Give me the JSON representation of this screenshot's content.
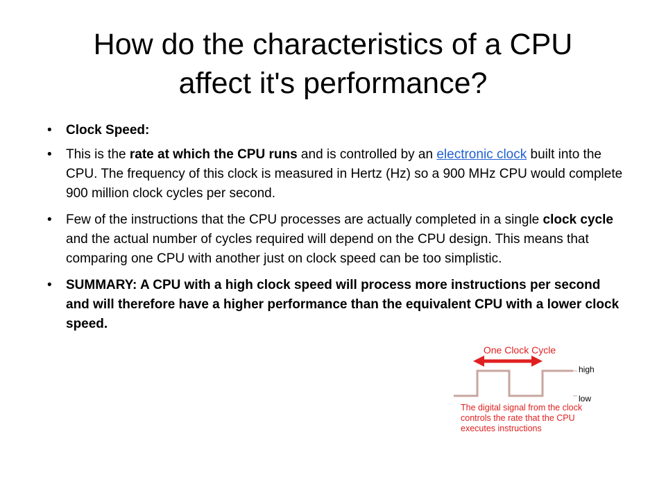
{
  "slide": {
    "title_line1": "How do the characteristics of a CPU",
    "title_line2": "affect it's performance?",
    "bullets": {
      "b1": "Clock Speed:",
      "b2_a": "This is the ",
      "b2_bold": "rate at which the CPU runs",
      "b2_b": " and is controlled by an ",
      "b2_link": "electronic clock",
      "b2_c": " built into the CPU. The frequency of this clock is measured in Hertz (Hz) so a 900 MHz CPU would complete 900 million clock cycles per second.",
      "b3_a": "Few of the instructions that the CPU processes are actually completed in a single ",
      "b3_bold": "clock cycle",
      "b3_b": " and the actual number of cycles required will depend on the CPU design. This means that comparing one CPU with another just on clock speed can be too simplistic.",
      "b4": "SUMMARY: A CPU with a high clock speed will process more instructions per second and will therefore have a higher performance than the equivalent CPU with a lower clock speed."
    },
    "bullet_glyph": "•"
  },
  "diagram": {
    "cycle_label": "One Clock Cycle",
    "high_label": "high",
    "low_label": "low",
    "caption": "The digital signal from the clock controls the rate that the CPU executes instructions",
    "wave_color": "#c8a6a0",
    "arrow_color": "#e02020"
  }
}
